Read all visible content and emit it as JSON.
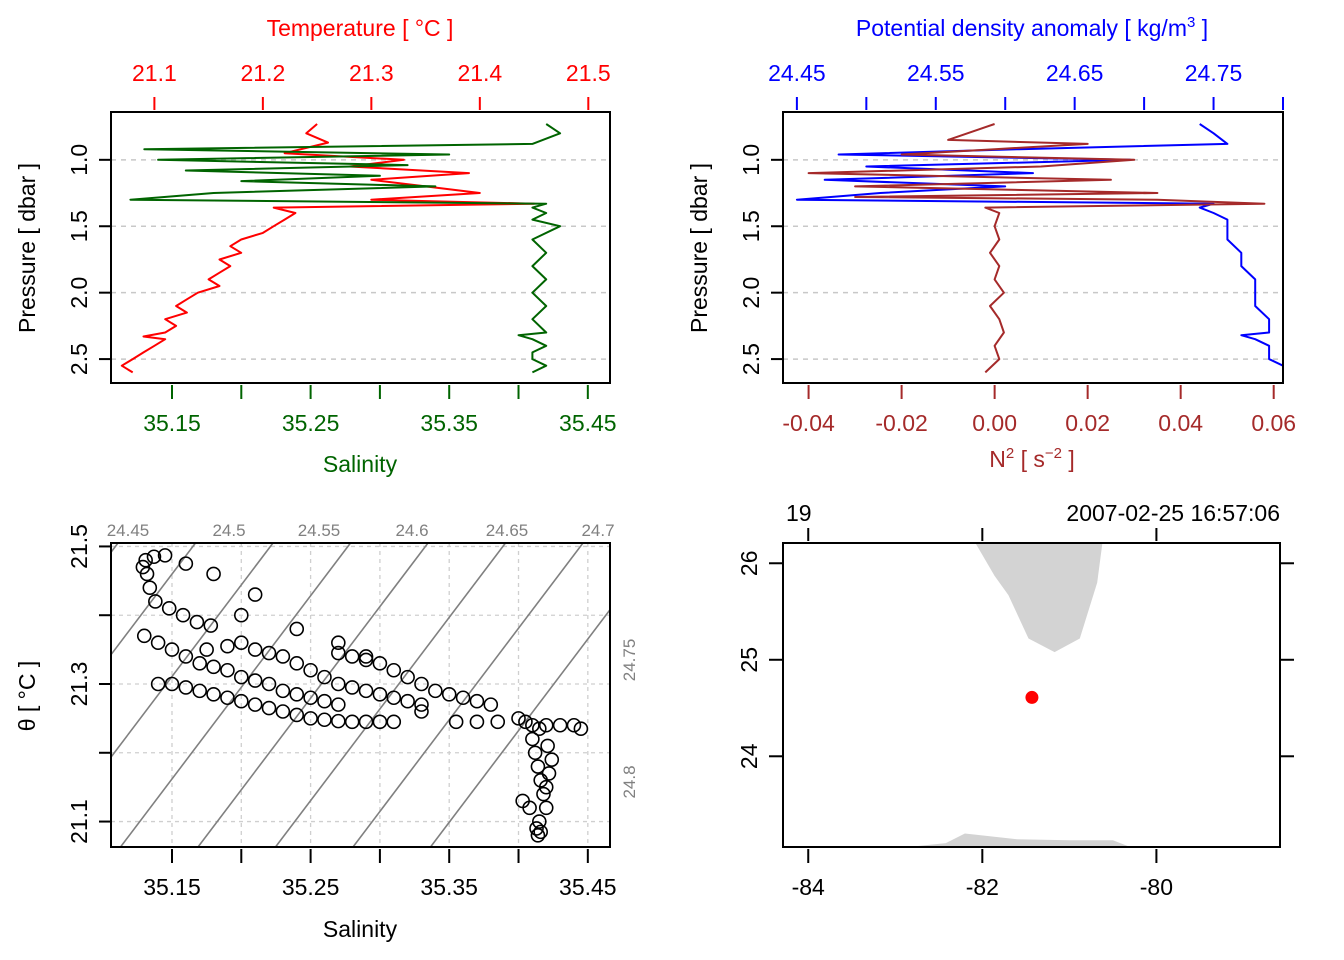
{
  "chart_data": [
    {
      "id": "profile-ts",
      "type": "line",
      "top_axis": {
        "label": "Temperature [ °C ]",
        "ticks": [
          "21.1",
          "21.2",
          "21.3",
          "21.4",
          "21.5"
        ],
        "range": [
          21.06,
          21.52
        ],
        "color": "#ff0000"
      },
      "bottom_axis": {
        "label": "Salinity",
        "ticks": [
          "35.15",
          "35.25",
          "35.35",
          "35.45"
        ],
        "minor_ticks": [
          35.15,
          35.2,
          35.25,
          35.3,
          35.35,
          35.4,
          35.45
        ],
        "range": [
          35.106,
          35.466
        ],
        "color": "#006400"
      },
      "left_axis": {
        "label": "Pressure [ dbar ]",
        "ticks": [
          "1.0",
          "1.5",
          "2.0",
          "2.5"
        ],
        "range": [
          0.64,
          2.68
        ],
        "reversed": true,
        "color": "#000000"
      },
      "grid": "horizontal-dashed",
      "series": [
        {
          "name": "Temperature",
          "color": "#ff0000",
          "pressure": [
            0.73,
            0.8,
            0.87,
            0.95,
            1.0,
            1.05,
            1.1,
            1.15,
            1.2,
            1.25,
            1.3,
            1.33,
            1.36,
            1.4,
            1.45,
            1.5,
            1.55,
            1.6,
            1.65,
            1.7,
            1.75,
            1.8,
            1.85,
            1.9,
            1.95,
            2.0,
            2.05,
            2.1,
            2.15,
            2.2,
            2.25,
            2.3,
            2.33,
            2.35,
            2.4,
            2.45,
            2.5,
            2.55,
            2.6
          ],
          "values": [
            21.25,
            21.24,
            21.26,
            21.22,
            21.33,
            21.28,
            21.39,
            21.3,
            21.35,
            21.4,
            21.3,
            21.45,
            21.21,
            21.23,
            21.22,
            21.21,
            21.2,
            21.18,
            21.17,
            21.18,
            21.16,
            21.17,
            21.16,
            21.15,
            21.16,
            21.14,
            21.13,
            21.12,
            21.13,
            21.11,
            21.12,
            21.11,
            21.09,
            21.11,
            21.1,
            21.09,
            21.08,
            21.07,
            21.08
          ]
        },
        {
          "name": "Salinity",
          "color": "#006400",
          "pressure": [
            0.73,
            0.8,
            0.88,
            0.92,
            0.96,
            1.0,
            1.04,
            1.08,
            1.12,
            1.16,
            1.2,
            1.25,
            1.3,
            1.33,
            1.36,
            1.4,
            1.45,
            1.5,
            1.6,
            1.7,
            1.8,
            1.9,
            2.0,
            2.1,
            2.2,
            2.3,
            2.32,
            2.35,
            2.4,
            2.45,
            2.5,
            2.55,
            2.6
          ],
          "values": [
            35.42,
            35.43,
            35.41,
            35.13,
            35.35,
            35.14,
            35.32,
            35.16,
            35.3,
            35.2,
            35.34,
            35.18,
            35.12,
            35.42,
            35.41,
            35.42,
            35.41,
            35.43,
            35.41,
            35.42,
            35.41,
            35.42,
            35.41,
            35.42,
            35.41,
            35.42,
            35.4,
            35.41,
            35.42,
            35.41,
            35.41,
            35.42,
            35.41
          ]
        }
      ]
    },
    {
      "id": "profile-density-n2",
      "type": "line",
      "top_axis": {
        "label": "Potential density anomaly [ kg/m³ ]",
        "ticks": [
          "24.45",
          "24.55",
          "24.65",
          "24.75"
        ],
        "minor_ticks": [
          24.45,
          24.5,
          24.55,
          24.6,
          24.65,
          24.7,
          24.75,
          24.8
        ],
        "range": [
          24.44,
          24.8
        ],
        "color": "#0000ff"
      },
      "bottom_axis": {
        "label": "N² [ s⁻² ]",
        "ticks": [
          "-0.04",
          "-0.02",
          "0.00",
          "0.02",
          "0.04",
          "0.06"
        ],
        "range": [
          -0.0455,
          0.062
        ],
        "color": "#a52a2a"
      },
      "left_axis": {
        "label": "Pressure [ dbar ]",
        "ticks": [
          "1.0",
          "1.5",
          "2.0",
          "2.5"
        ],
        "range": [
          0.64,
          2.68
        ],
        "reversed": true,
        "color": "#000000"
      },
      "grid": "horizontal-dashed",
      "series": [
        {
          "name": "Potential density anomaly",
          "color": "#0000ff",
          "pressure": [
            0.73,
            0.8,
            0.88,
            0.92,
            0.96,
            1.0,
            1.05,
            1.1,
            1.15,
            1.2,
            1.25,
            1.3,
            1.33,
            1.36,
            1.4,
            1.45,
            1.5,
            1.6,
            1.7,
            1.8,
            1.9,
            2.0,
            2.1,
            2.2,
            2.3,
            2.32,
            2.35,
            2.4,
            2.45,
            2.5,
            2.55,
            2.6
          ],
          "values": [
            24.74,
            24.75,
            24.76,
            24.61,
            24.48,
            24.69,
            24.5,
            24.62,
            24.47,
            24.6,
            24.51,
            24.45,
            24.75,
            24.74,
            24.75,
            24.76,
            24.76,
            24.76,
            24.77,
            24.77,
            24.78,
            24.78,
            24.78,
            24.79,
            24.79,
            24.77,
            24.78,
            24.79,
            24.79,
            24.79,
            24.8,
            24.8
          ]
        },
        {
          "name": "N²",
          "color": "#a52a2a",
          "pressure": [
            0.73,
            0.85,
            0.88,
            0.92,
            0.96,
            1.0,
            1.05,
            1.1,
            1.15,
            1.2,
            1.25,
            1.28,
            1.3,
            1.33,
            1.36,
            1.4,
            1.5,
            1.6,
            1.7,
            1.8,
            1.9,
            2.0,
            2.1,
            2.2,
            2.3,
            2.4,
            2.5,
            2.6
          ],
          "values": [
            0.0,
            -0.01,
            0.02,
            -0.0,
            -0.02,
            0.03,
            0.01,
            -0.04,
            0.025,
            -0.03,
            0.035,
            -0.03,
            0.035,
            0.058,
            -0.002,
            0.001,
            0.0,
            0.001,
            -0.001,
            0.001,
            0.0,
            0.002,
            -0.001,
            0.001,
            0.002,
            0.0,
            0.001,
            -0.002
          ]
        }
      ]
    },
    {
      "id": "ts-diagram",
      "type": "scatter",
      "xlabel": "Salinity",
      "ylabel": "θ [ °C ]",
      "x_ticks": [
        "35.15",
        "35.25",
        "35.35",
        "35.45"
      ],
      "x_minor_ticks": [
        35.15,
        35.2,
        35.25,
        35.3,
        35.35,
        35.4,
        35.45
      ],
      "y_ticks": [
        "21.1",
        "21.3",
        "21.5"
      ],
      "y_minor_ticks": [
        21.1,
        21.2,
        21.3,
        21.4,
        21.5
      ],
      "xlim": [
        35.106,
        35.466
      ],
      "ylim": [
        21.063,
        21.505
      ],
      "grid": true,
      "isopycnal_labels_top": [
        "24.45",
        "24.5",
        "24.55",
        "24.6",
        "24.65",
        "24.7"
      ],
      "isopycnal_labels_right": [
        "24.75",
        "24.8"
      ],
      "isopycnal_color": "#808080",
      "points": [
        [
          35.129,
          21.47
        ],
        [
          35.131,
          21.48
        ],
        [
          35.137,
          21.485
        ],
        [
          35.145,
          21.487
        ],
        [
          35.16,
          21.475
        ],
        [
          35.18,
          21.46
        ],
        [
          35.2,
          21.4
        ],
        [
          35.21,
          21.43
        ],
        [
          35.24,
          21.38
        ],
        [
          35.27,
          21.36
        ],
        [
          35.29,
          21.34
        ],
        [
          35.132,
          21.46
        ],
        [
          35.134,
          21.44
        ],
        [
          35.138,
          21.42
        ],
        [
          35.148,
          21.41
        ],
        [
          35.158,
          21.4
        ],
        [
          35.168,
          21.39
        ],
        [
          35.178,
          21.385
        ],
        [
          35.13,
          21.37
        ],
        [
          35.14,
          21.36
        ],
        [
          35.15,
          21.35
        ],
        [
          35.16,
          21.34
        ],
        [
          35.17,
          21.33
        ],
        [
          35.18,
          21.325
        ],
        [
          35.19,
          21.32
        ],
        [
          35.2,
          21.31
        ],
        [
          35.21,
          21.305
        ],
        [
          35.22,
          21.3
        ],
        [
          35.23,
          21.29
        ],
        [
          35.24,
          21.285
        ],
        [
          35.25,
          21.28
        ],
        [
          35.26,
          21.275
        ],
        [
          35.27,
          21.27
        ],
        [
          35.14,
          21.3
        ],
        [
          35.15,
          21.3
        ],
        [
          35.16,
          21.295
        ],
        [
          35.17,
          21.29
        ],
        [
          35.18,
          21.285
        ],
        [
          35.19,
          21.28
        ],
        [
          35.2,
          21.275
        ],
        [
          35.21,
          21.27
        ],
        [
          35.22,
          21.265
        ],
        [
          35.23,
          21.26
        ],
        [
          35.24,
          21.255
        ],
        [
          35.25,
          21.25
        ],
        [
          35.26,
          21.248
        ],
        [
          35.27,
          21.246
        ],
        [
          35.28,
          21.245
        ],
        [
          35.29,
          21.245
        ],
        [
          35.3,
          21.245
        ],
        [
          35.31,
          21.245
        ],
        [
          35.175,
          21.35
        ],
        [
          35.19,
          21.355
        ],
        [
          35.2,
          21.36
        ],
        [
          35.21,
          21.35
        ],
        [
          35.22,
          21.345
        ],
        [
          35.23,
          21.34
        ],
        [
          35.24,
          21.33
        ],
        [
          35.25,
          21.32
        ],
        [
          35.26,
          21.31
        ],
        [
          35.27,
          21.3
        ],
        [
          35.28,
          21.295
        ],
        [
          35.29,
          21.29
        ],
        [
          35.3,
          21.285
        ],
        [
          35.31,
          21.28
        ],
        [
          35.32,
          21.275
        ],
        [
          35.33,
          21.27
        ],
        [
          35.27,
          21.345
        ],
        [
          35.28,
          21.34
        ],
        [
          35.29,
          21.335
        ],
        [
          35.3,
          21.33
        ],
        [
          35.31,
          21.32
        ],
        [
          35.32,
          21.31
        ],
        [
          35.33,
          21.3
        ],
        [
          35.34,
          21.29
        ],
        [
          35.35,
          21.285
        ],
        [
          35.36,
          21.28
        ],
        [
          35.37,
          21.275
        ],
        [
          35.38,
          21.27
        ],
        [
          35.33,
          21.26
        ],
        [
          35.355,
          21.245
        ],
        [
          35.37,
          21.245
        ],
        [
          35.385,
          21.245
        ],
        [
          35.4,
          21.25
        ],
        [
          35.405,
          21.245
        ],
        [
          35.41,
          21.24
        ],
        [
          35.415,
          21.235
        ],
        [
          35.42,
          21.24
        ],
        [
          35.43,
          21.24
        ],
        [
          35.44,
          21.24
        ],
        [
          35.445,
          21.235
        ],
        [
          35.41,
          21.22
        ],
        [
          35.412,
          21.2
        ],
        [
          35.414,
          21.18
        ],
        [
          35.416,
          21.16
        ],
        [
          35.418,
          21.14
        ],
        [
          35.42,
          21.12
        ],
        [
          35.415,
          21.1
        ],
        [
          35.413,
          21.09
        ],
        [
          35.414,
          21.08
        ],
        [
          35.416,
          21.085
        ],
        [
          35.403,
          21.13
        ],
        [
          35.408,
          21.12
        ],
        [
          35.42,
          21.15
        ],
        [
          35.422,
          21.17
        ],
        [
          35.424,
          21.19
        ],
        [
          35.421,
          21.21
        ]
      ]
    },
    {
      "id": "station-map",
      "type": "scatter",
      "title_left": "19",
      "title_right": "2007-02-25 16:57:06",
      "x_ticks": [
        "-84",
        "-82",
        "-80"
      ],
      "y_ticks": [
        "24",
        "25",
        "26"
      ],
      "xlim": [
        -84.29,
        -78.58
      ],
      "ylim": [
        23.06,
        26.21
      ],
      "land_color": "#d3d3d3",
      "station": {
        "lon": -81.43,
        "lat": 24.61,
        "color": "#ff0000"
      },
      "land": [
        [
          [
            -82.08,
            26.21
          ],
          [
            -81.86,
            25.87
          ],
          [
            -81.7,
            25.67
          ],
          [
            -81.47,
            25.22
          ],
          [
            -81.17,
            25.08
          ],
          [
            -80.88,
            25.22
          ],
          [
            -80.68,
            25.8
          ],
          [
            -80.62,
            26.21
          ]
        ],
        [
          [
            -82.85,
            23.06
          ],
          [
            -82.42,
            23.1
          ],
          [
            -82.2,
            23.2
          ],
          [
            -81.6,
            23.14
          ],
          [
            -81.0,
            23.13
          ],
          [
            -80.5,
            23.13
          ],
          [
            -80.3,
            23.06
          ]
        ]
      ]
    }
  ]
}
